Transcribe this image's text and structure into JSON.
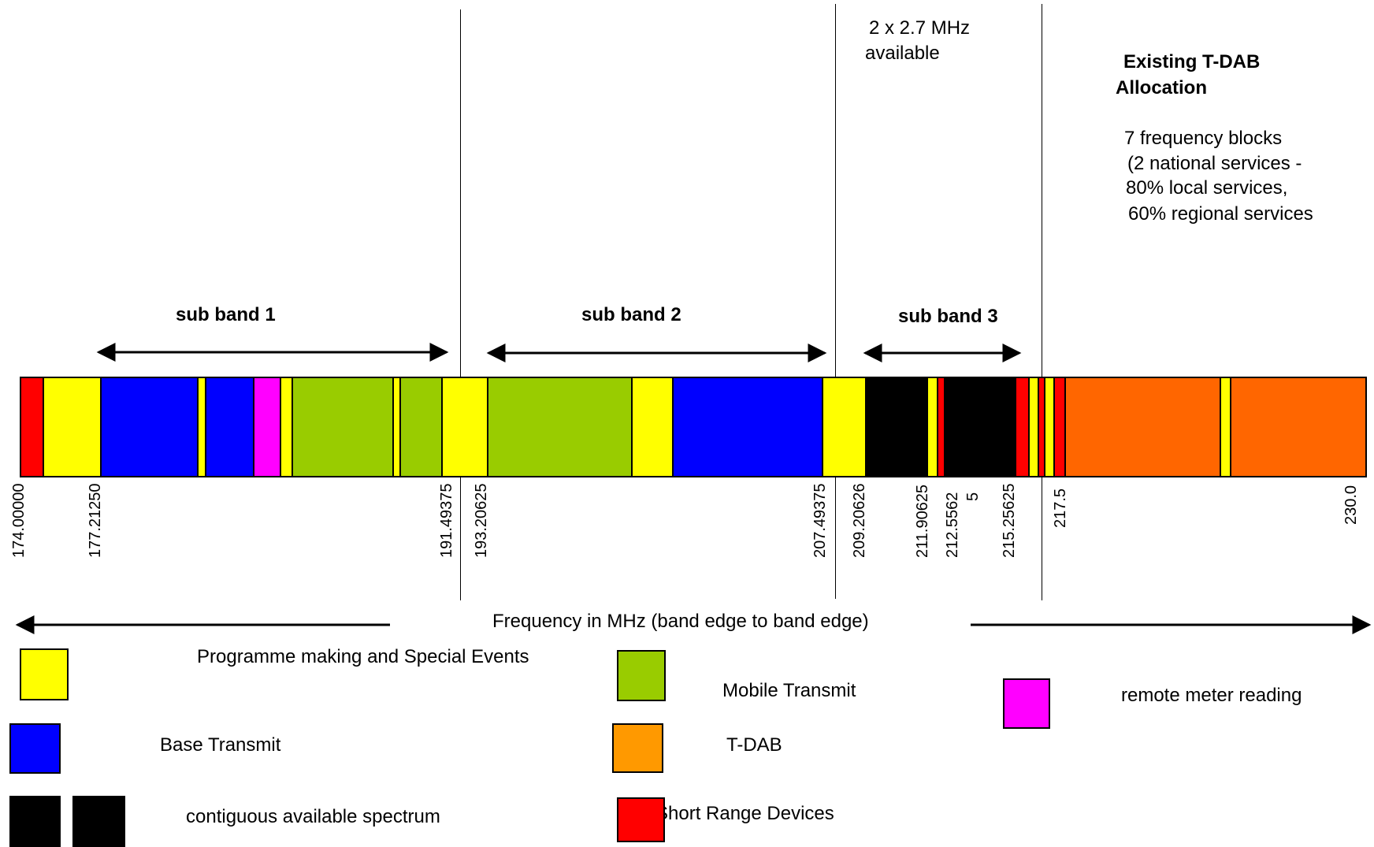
{
  "title_block": {
    "heading_line1": "Existing T-DAB",
    "heading_line2": "Allocation",
    "note_line1": "7 frequency blocks",
    "note_line2": "(2 national services -",
    "note_line3": "80% local services,",
    "note_line4": "60% regional services"
  },
  "top_note": {
    "line1": "2 x 2.7 MHz",
    "line2": "available"
  },
  "sub_bands": [
    "sub band 1",
    "sub band 2",
    "sub band 3"
  ],
  "axis_label": "Frequency in MHz (band edge to band edge)",
  "tick_labels": [
    "174.00000",
    "177.21250",
    "191.49375",
    "193.20625",
    "207.49375",
    "209.20626",
    "211.90625",
    "212.5562",
    "5",
    "215.25625",
    "217.5",
    "230.0"
  ],
  "legend": {
    "pmse": "Programme making and Special Events",
    "mobile_tx": "Mobile Transmit",
    "meter": "remote meter reading",
    "base_tx": "Base Transmit",
    "tdab": "T-DAB",
    "contiguous": "contiguous available spectrum",
    "srd": "Short Range Devices"
  },
  "colors": {
    "pmse": "#ffff00",
    "base_tx": "#0000ff",
    "mobile_tx": "#99cc00",
    "meter": "#ff00ff",
    "tdab_bar": "#ff6600",
    "tdab_legend": "#ff9900",
    "contiguous": "#000000",
    "srd": "#ff0000"
  },
  "spectrum_segments": [
    "srd",
    "pmse",
    "base_tx",
    "pmse",
    "base_tx",
    "meter",
    "pmse",
    "mobile_tx",
    "pmse",
    "mobile_tx",
    "pmse",
    "mobile_tx",
    "pmse",
    "base_tx",
    "pmse",
    "contiguous",
    "pmse",
    "srd",
    "contiguous",
    "srd",
    "pmse",
    "srd",
    "pmse",
    "srd",
    "tdab_bar",
    "pmse",
    "tdab_bar"
  ]
}
